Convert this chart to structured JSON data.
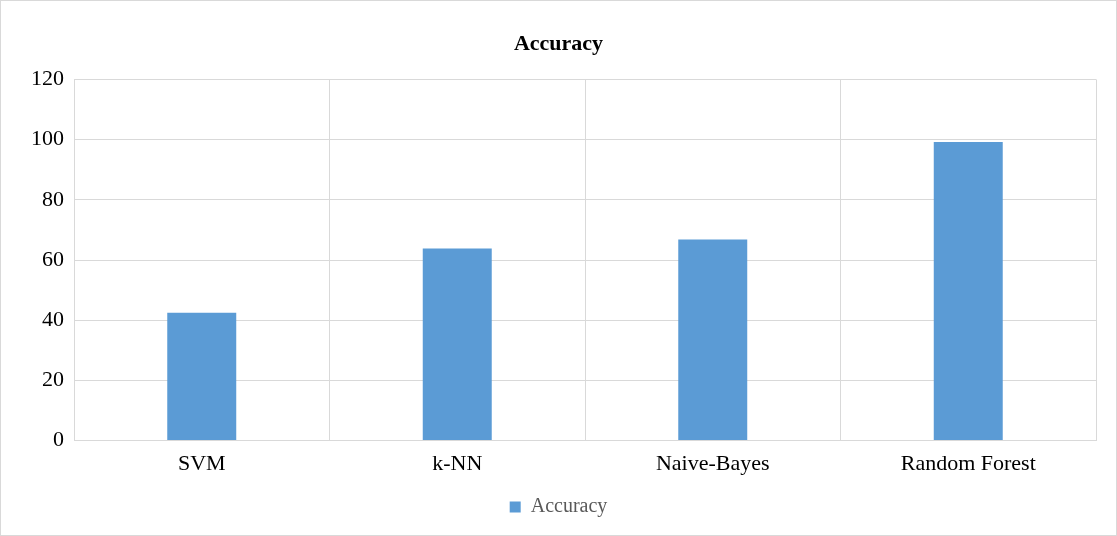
{
  "chart_data": {
    "type": "bar",
    "title": "Accuracy",
    "categories": [
      "SVM",
      "k-NN",
      "Naive-Bayes",
      "Random Forest"
    ],
    "series": [
      {
        "name": "Accuracy",
        "color": "#5b9bd5",
        "values": [
          42.5,
          63.8,
          66.8,
          99.2
        ]
      }
    ],
    "ylim": [
      0,
      120
    ],
    "yticks": [
      0,
      20,
      40,
      60,
      80,
      100,
      120
    ],
    "grid": true,
    "legend": "bottom"
  }
}
